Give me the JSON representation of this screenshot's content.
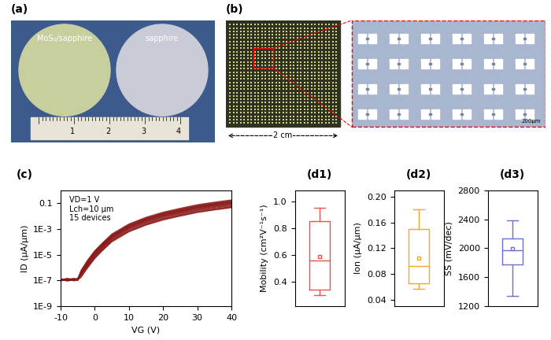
{
  "panels": [
    {
      "label": "(a)",
      "type": "photo",
      "wafer_labels": [
        "MoS₂/sapphire",
        "sapphire"
      ],
      "ruler_labels": [
        "1",
        "2",
        "3",
        "4"
      ]
    },
    {
      "label": "(b)",
      "type": "photo",
      "size_label": "2 cm",
      "scale_label": "200μm"
    }
  ],
  "chart_data": [
    {
      "label": "(c)",
      "type": "line",
      "log": "y",
      "color": "#8b1a1a",
      "x_label": "VG (V)",
      "y_label": "ID (μA/μm)",
      "annotations": [
        "VD=1 V",
        "Lch=10 μm",
        "15 devices"
      ],
      "xlim": [
        -10,
        40
      ],
      "xticks": [
        -10,
        0,
        10,
        20,
        30,
        40
      ],
      "ylim": [
        1e-09,
        1
      ],
      "yticks": [
        {
          "value": 1e-09,
          "label": "1E-9"
        },
        {
          "value": 1e-07,
          "label": "1E-7"
        },
        {
          "value": 1e-05,
          "label": "1E-5"
        },
        {
          "value": 0.001,
          "label": "1E-3"
        },
        {
          "value": 0.1,
          "label": "0.1"
        }
      ],
      "x": [
        -10,
        -8,
        -6,
        -5,
        -4,
        -2,
        0,
        2,
        5,
        10,
        15,
        20,
        25,
        30,
        35,
        40
      ],
      "series": [
        {
          "values": [
            1.1e-07,
            1.3e-07,
            9e-08,
            1.2e-07,
            2e-07,
            1e-06,
            5e-06,
            1.8e-05,
            0.0001,
            0.0006,
            0.002,
            0.005,
            0.01,
            0.019,
            0.03,
            0.045
          ]
        },
        {
          "values": [
            1.3e-07,
            9e-08,
            1.1e-07,
            1.4e-07,
            2.5e-07,
            1.3e-06,
            6e-06,
            2.1e-05,
            0.00012,
            0.0007,
            0.0024,
            0.006,
            0.012,
            0.023,
            0.036,
            0.054
          ]
        },
        {
          "values": [
            9e-08,
            1.2e-07,
            1.4e-07,
            1e-07,
            2.8e-07,
            1.5e-06,
            7e-06,
            2.5e-05,
            0.00014,
            0.00084,
            0.0028,
            0.007,
            0.014,
            0.027,
            0.042,
            0.063
          ]
        },
        {
          "values": [
            1.2e-07,
            1e-07,
            1.2e-07,
            1.3e-07,
            3e-07,
            1.6e-06,
            8e-06,
            2.8e-05,
            0.00016,
            0.00096,
            0.0032,
            0.008,
            0.016,
            0.03,
            0.048,
            0.072
          ]
        },
        {
          "values": [
            1e-07,
            1.4e-07,
            1e-07,
            1.1e-07,
            3.2e-07,
            1.8e-06,
            9e-06,
            3.2e-05,
            0.00018,
            0.0011,
            0.0036,
            0.009,
            0.018,
            0.034,
            0.054,
            0.081
          ]
        },
        {
          "values": [
            1.2e-07,
            1e-07,
            1.3e-07,
            1e-07,
            3e-07,
            2e-06,
            1e-05,
            3.5e-05,
            0.0002,
            0.0012,
            0.004,
            0.01,
            0.02,
            0.038,
            0.06,
            0.09
          ]
        },
        {
          "values": [
            1.3e-07,
            1.1e-07,
            1e-07,
            1.2e-07,
            3.5e-07,
            2.2e-06,
            1.1e-05,
            3.9e-05,
            0.00022,
            0.0013,
            0.0044,
            0.011,
            0.022,
            0.042,
            0.066,
            0.099
          ]
        },
        {
          "values": [
            1e-07,
            1.2e-07,
            1.3e-07,
            1e-07,
            3.6e-07,
            2.4e-06,
            1.2e-05,
            4.2e-05,
            0.00024,
            0.0014,
            0.0048,
            0.012,
            0.024,
            0.046,
            0.072,
            0.108
          ]
        },
        {
          "values": [
            1.1e-07,
            9e-08,
            1.2e-07,
            1.4e-07,
            4e-07,
            2.6e-06,
            1.3e-05,
            4.6e-05,
            0.00026,
            0.0016,
            0.0052,
            0.013,
            0.026,
            0.049,
            0.078,
            0.117
          ]
        },
        {
          "values": [
            1.2e-07,
            1.3e-07,
            1e-07,
            1.2e-07,
            4.2e-07,
            2.8e-06,
            1.4e-05,
            4.9e-05,
            0.00028,
            0.0017,
            0.0056,
            0.014,
            0.028,
            0.053,
            0.084,
            0.126
          ]
        },
        {
          "values": [
            1e-07,
            1.1e-07,
            1.3e-07,
            1.1e-07,
            4.5e-07,
            3e-06,
            1.5e-05,
            5.3e-05,
            0.0003,
            0.0018,
            0.006,
            0.015,
            0.03,
            0.057,
            0.09,
            0.135
          ]
        },
        {
          "values": [
            1.3e-07,
            1e-07,
            1.1e-07,
            1.3e-07,
            4.8e-07,
            3.2e-06,
            1.6e-05,
            5.6e-05,
            0.00032,
            0.0019,
            0.0064,
            0.016,
            0.032,
            0.061,
            0.096,
            0.144
          ]
        },
        {
          "values": [
            1.1e-07,
            1.2e-07,
            1e-07,
            1.2e-07,
            5.4e-07,
            3.6e-06,
            1.8e-05,
            6.3e-05,
            0.00036,
            0.0022,
            0.0072,
            0.018,
            0.036,
            0.068,
            0.108,
            0.162
          ]
        },
        {
          "values": [
            1e-07,
            1.3e-07,
            1.2e-07,
            1e-07,
            6e-07,
            4e-06,
            2e-05,
            7e-05,
            0.0004,
            0.0024,
            0.008,
            0.02,
            0.04,
            0.076,
            0.12,
            0.18
          ]
        },
        {
          "values": [
            1.2e-07,
            1e-07,
            1.3e-07,
            1.1e-07,
            1.7e-07,
            1.1e-06,
            5.5e-06,
            1.9e-05,
            0.00011,
            0.00066,
            0.0022,
            0.0055,
            0.011,
            0.021,
            0.033,
            0.05
          ]
        }
      ]
    },
    {
      "label": "(d1)",
      "type": "box",
      "color": "#e8524f",
      "tick_labels": "y",
      "y_label": "Mobility (cm²V⁻¹s⁻¹)",
      "ylim": [
        0.22,
        1.08
      ],
      "yticks": [
        {
          "value": 0.4,
          "label": "0.4"
        },
        {
          "value": 0.6,
          "label": "0.6"
        },
        {
          "value": 0.8,
          "label": "0.8"
        },
        {
          "value": 1.0,
          "label": "1.0"
        }
      ],
      "box": {
        "whislo": 0.3,
        "q1": 0.34,
        "med": 0.56,
        "q3": 0.85,
        "whishi": 0.95,
        "mean": 0.59
      }
    },
    {
      "label": "(d2)",
      "type": "box",
      "color": "#f5a623",
      "tick_labels": "y",
      "y_label": "Ion (μA/μm)",
      "ylim": [
        0.03,
        0.21
      ],
      "yticks": [
        {
          "value": 0.04,
          "label": "0.04"
        },
        {
          "value": 0.08,
          "label": "0.08"
        },
        {
          "value": 0.12,
          "label": "0.12"
        },
        {
          "value": 0.16,
          "label": "0.16"
        },
        {
          "value": 0.2,
          "label": "0.20"
        }
      ],
      "box": {
        "whislo": 0.057,
        "q1": 0.065,
        "med": 0.092,
        "q3": 0.15,
        "whishi": 0.18,
        "mean": 0.105
      }
    },
    {
      "label": "(d3)",
      "type": "box",
      "color": "#6a6fd6",
      "tick_labels": "y",
      "y_label": "SS (mV/dec)",
      "ylim": [
        1200,
        2800
      ],
      "yticks": [
        1200,
        1600,
        2000,
        2400,
        2800
      ],
      "box": {
        "whislo": 1340,
        "q1": 1780,
        "med": 1975,
        "q3": 2140,
        "whishi": 2390,
        "mean": 1990
      }
    }
  ]
}
